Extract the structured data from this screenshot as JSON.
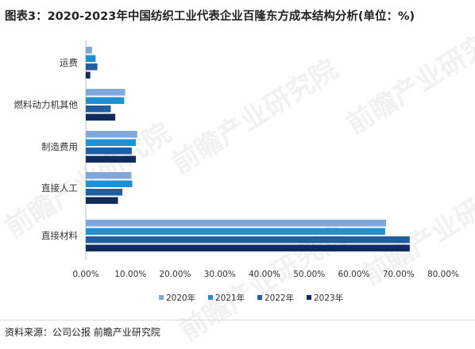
{
  "title": "图表3：2020-2023年中国纺织工业代表企业百隆东方成本结构分析(单位：%)",
  "source": "资料来源：公司公报 前瞻产业研究院",
  "watermark": "前瞻产业研究院",
  "chart_data": {
    "type": "bar",
    "orientation": "horizontal",
    "categories": [
      "运费",
      "燃料动力机其他",
      "制造费用",
      "直接人工",
      "直接材料"
    ],
    "series": [
      {
        "name": "2020年",
        "color": "#7fa7dc",
        "values": [
          1.4,
          8.8,
          11.5,
          10.2,
          67.2
        ]
      },
      {
        "name": "2021年",
        "color": "#1e90d6",
        "values": [
          2.2,
          8.6,
          11.2,
          10.4,
          67.0
        ]
      },
      {
        "name": "2022年",
        "color": "#1f5fa0",
        "values": [
          2.6,
          5.6,
          10.3,
          8.2,
          72.5
        ]
      },
      {
        "name": "2023年",
        "color": "#0f2a5c",
        "values": [
          1.0,
          6.6,
          11.2,
          7.2,
          72.5
        ]
      }
    ],
    "xlim": [
      0,
      80
    ],
    "xticks": [
      "0.00%",
      "10.00%",
      "20.00%",
      "30.00%",
      "40.00%",
      "50.00%",
      "60.00%",
      "70.00%",
      "80.00%"
    ],
    "xtick_values": [
      0,
      10,
      20,
      30,
      40,
      50,
      60,
      70,
      80
    ],
    "legend_position": "bottom",
    "grid": false
  }
}
